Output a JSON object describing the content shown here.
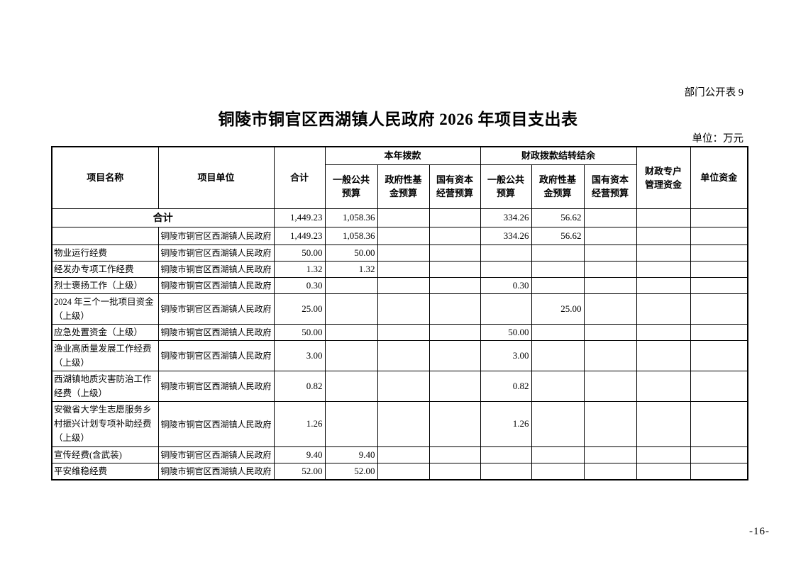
{
  "page": {
    "corner_label": "部门公开表 9",
    "title": "铜陵市铜官区西湖镇人民政府 2026 年项目支出表",
    "unit_note": "单位：万元",
    "page_number": "-16-"
  },
  "table": {
    "headers": {
      "project_name": "项目名称",
      "project_unit": "项目单位",
      "total": "合计",
      "current_year_group": "本年拨款",
      "carryover_group": "财政拨款结转结余",
      "general_budget": "一般公共预算",
      "gov_fund_budget": "政府性基金预算",
      "state_capital_budget": "国有资本经营预算",
      "fiscal_account": "财政专户管理资金",
      "unit_funds": "单位资金"
    },
    "rows": [
      {
        "merged": true,
        "cells": [
          "合计",
          "",
          "1,449.23",
          "1,058.36",
          "",
          "",
          "334.26",
          "56.62",
          "",
          "",
          ""
        ]
      },
      {
        "merged": false,
        "cells": [
          "",
          "铜陵市铜官区西湖镇人民政府",
          "1,449.23",
          "1,058.36",
          "",
          "",
          "334.26",
          "56.62",
          "",
          "",
          ""
        ]
      },
      {
        "merged": false,
        "cells": [
          "物业运行经费",
          "铜陵市铜官区西湖镇人民政府",
          "50.00",
          "50.00",
          "",
          "",
          "",
          "",
          "",
          "",
          ""
        ]
      },
      {
        "merged": false,
        "cells": [
          "经发办专项工作经费",
          "铜陵市铜官区西湖镇人民政府",
          "1.32",
          "1.32",
          "",
          "",
          "",
          "",
          "",
          "",
          ""
        ]
      },
      {
        "merged": false,
        "cells": [
          "烈士褒扬工作（上级）",
          "铜陵市铜官区西湖镇人民政府",
          "0.30",
          "",
          "",
          "",
          "0.30",
          "",
          "",
          "",
          ""
        ]
      },
      {
        "merged": false,
        "cells": [
          "2024 年三个一批项目资金（上级）",
          "铜陵市铜官区西湖镇人民政府",
          "25.00",
          "",
          "",
          "",
          "",
          "25.00",
          "",
          "",
          ""
        ]
      },
      {
        "merged": false,
        "cells": [
          "应急处置资金（上级）",
          "铜陵市铜官区西湖镇人民政府",
          "50.00",
          "",
          "",
          "",
          "50.00",
          "",
          "",
          "",
          ""
        ]
      },
      {
        "merged": false,
        "cells": [
          "渔业高质量发展工作经费（上级）",
          "铜陵市铜官区西湖镇人民政府",
          "3.00",
          "",
          "",
          "",
          "3.00",
          "",
          "",
          "",
          ""
        ]
      },
      {
        "merged": false,
        "cells": [
          "西湖镇地质灾害防治工作经费（上级）",
          "铜陵市铜官区西湖镇人民政府",
          "0.82",
          "",
          "",
          "",
          "0.82",
          "",
          "",
          "",
          ""
        ]
      },
      {
        "merged": false,
        "cells": [
          "安徽省大学生志愿服务乡村振兴计划专项补助经费（上级）",
          "铜陵市铜官区西湖镇人民政府",
          "1.26",
          "",
          "",
          "",
          "1.26",
          "",
          "",
          "",
          ""
        ]
      },
      {
        "merged": false,
        "cells": [
          "宣传经费(含武装)",
          "铜陵市铜官区西湖镇人民政府",
          "9.40",
          "9.40",
          "",
          "",
          "",
          "",
          "",
          "",
          ""
        ]
      },
      {
        "merged": false,
        "cells": [
          "平安维稳经费",
          "铜陵市铜官区西湖镇人民政府",
          "52.00",
          "52.00",
          "",
          "",
          "",
          "",
          "",
          "",
          ""
        ]
      }
    ]
  }
}
